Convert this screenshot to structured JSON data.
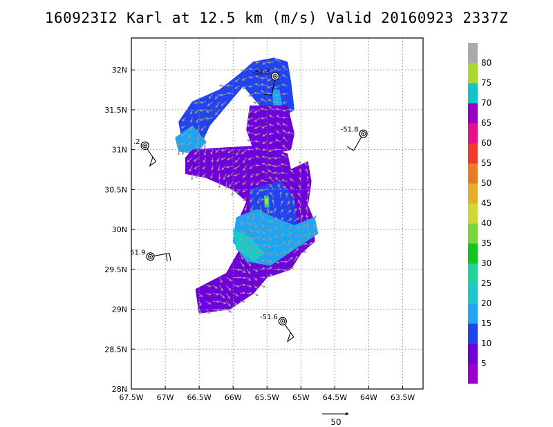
{
  "title": "160923I2 Karl at 12.5 km (m/s) Valid 20160923 2337Z",
  "map": {
    "lon_range": [
      -67.5,
      -63.2
    ],
    "lat_range": [
      28,
      32.4
    ],
    "lon_ticks": [
      {
        "v": -67.5,
        "label": "67.5W"
      },
      {
        "v": -67,
        "label": "67W"
      },
      {
        "v": -66.5,
        "label": "66.5W"
      },
      {
        "v": -66,
        "label": "66W"
      },
      {
        "v": -65.5,
        "label": "65.5W"
      },
      {
        "v": -65,
        "label": "65W"
      },
      {
        "v": -64.5,
        "label": "64.5W"
      },
      {
        "v": -64,
        "label": "64W"
      },
      {
        "v": -63.5,
        "label": "63.5W"
      }
    ],
    "lat_ticks": [
      {
        "v": 28,
        "label": "28N"
      },
      {
        "v": 28.5,
        "label": "28.5N"
      },
      {
        "v": 29,
        "label": "29N"
      },
      {
        "v": 29.5,
        "label": "29.5N"
      },
      {
        "v": 30,
        "label": "30N"
      },
      {
        "v": 30.5,
        "label": "30.5N"
      },
      {
        "v": 31,
        "label": "31N"
      },
      {
        "v": 31.5,
        "label": "31.5N"
      },
      {
        "v": 32,
        "label": "32N"
      }
    ]
  },
  "colorbar": {
    "labels": [
      "5",
      "10",
      "15",
      "20",
      "25",
      "30",
      "35",
      "40",
      "45",
      "50",
      "55",
      "60",
      "65",
      "70",
      "75",
      "80"
    ],
    "colors": [
      "#9a00d0",
      "#7000d8",
      "#2244ee",
      "#1ea6f2",
      "#1cc8c8",
      "#1ed49a",
      "#10c81c",
      "#76d836",
      "#d2d832",
      "#e6ac2a",
      "#ea7a26",
      "#ee3a2c",
      "#e8108a",
      "#9800c8",
      "#12c4c8",
      "#a8da32",
      "#aaaaaa"
    ]
  },
  "dropsondes": [
    {
      "lon": -65.38,
      "lat": 31.92,
      "label": "-52.3",
      "wind_dir": 190,
      "wind_kt": 10
    },
    {
      "lon": -64.08,
      "lat": 31.2,
      "label": "-51.8",
      "wind_dir": 210,
      "wind_kt": 10
    },
    {
      "lon": -67.3,
      "lat": 31.05,
      "label": ".2",
      "wind_dir": 145,
      "wind_kt": 50
    },
    {
      "lon": -67.22,
      "lat": 29.66,
      "label": "51.9",
      "wind_dir": 80,
      "wind_kt": 20
    },
    {
      "lon": -65.27,
      "lat": 28.85,
      "label": "-51.6",
      "wind_dir": 145,
      "wind_kt": 50
    }
  ],
  "vector_scale": {
    "label": "50"
  },
  "wind_field": {
    "region_polygons": [
      {
        "value": 10,
        "points": [
          [
            -66.5,
            31.0
          ],
          [
            -66.75,
            31.1
          ],
          [
            -66.8,
            31.35
          ],
          [
            -66.6,
            31.6
          ],
          [
            -66.2,
            31.75
          ],
          [
            -65.9,
            31.95
          ],
          [
            -65.7,
            32.1
          ],
          [
            -65.4,
            32.15
          ],
          [
            -65.2,
            32.1
          ],
          [
            -65.15,
            31.85
          ],
          [
            -65.1,
            31.5
          ],
          [
            -65.3,
            31.4
          ],
          [
            -65.6,
            31.55
          ],
          [
            -65.85,
            31.8
          ],
          [
            -66.1,
            31.55
          ],
          [
            -66.35,
            31.3
          ],
          [
            -66.45,
            31.1
          ]
        ]
      },
      {
        "value": 15,
        "points": [
          [
            -66.85,
            31.15
          ],
          [
            -66.6,
            31.3
          ],
          [
            -66.4,
            31.1
          ],
          [
            -66.55,
            30.95
          ],
          [
            -66.8,
            30.98
          ]
        ]
      },
      {
        "value": 15,
        "points": [
          [
            -65.42,
            31.75
          ],
          [
            -65.32,
            31.75
          ],
          [
            -65.28,
            31.55
          ],
          [
            -65.4,
            31.55
          ]
        ]
      },
      {
        "value": 5,
        "points": [
          [
            -65.75,
            31.55
          ],
          [
            -65.2,
            31.55
          ],
          [
            -65.1,
            31.2
          ],
          [
            -65.15,
            31.0
          ],
          [
            -65.4,
            30.95
          ],
          [
            -65.7,
            31.0
          ],
          [
            -65.8,
            31.25
          ]
        ]
      },
      {
        "value": 5,
        "points": [
          [
            -66.6,
            31.0
          ],
          [
            -65.6,
            31.05
          ],
          [
            -65.2,
            30.95
          ],
          [
            -65.15,
            30.75
          ],
          [
            -64.9,
            30.85
          ],
          [
            -64.85,
            30.6
          ],
          [
            -64.9,
            30.3
          ],
          [
            -64.8,
            30.1
          ],
          [
            -64.8,
            29.85
          ],
          [
            -65.0,
            29.7
          ],
          [
            -65.15,
            29.5
          ],
          [
            -65.5,
            29.4
          ],
          [
            -65.7,
            29.2
          ],
          [
            -66.05,
            29.0
          ],
          [
            -66.5,
            28.95
          ],
          [
            -66.55,
            29.25
          ],
          [
            -66.1,
            29.45
          ],
          [
            -65.9,
            29.75
          ],
          [
            -65.95,
            30.05
          ],
          [
            -65.8,
            30.35
          ],
          [
            -66.0,
            30.5
          ],
          [
            -66.4,
            30.65
          ],
          [
            -66.7,
            30.7
          ],
          [
            -66.7,
            30.9
          ]
        ]
      },
      {
        "value": 10,
        "points": [
          [
            -65.75,
            30.5
          ],
          [
            -65.3,
            30.6
          ],
          [
            -65.1,
            30.4
          ],
          [
            -65.05,
            30.0
          ],
          [
            -65.3,
            29.8
          ],
          [
            -65.8,
            29.85
          ],
          [
            -65.75,
            30.2
          ]
        ]
      },
      {
        "value": 15,
        "points": [
          [
            -65.95,
            30.15
          ],
          [
            -65.65,
            30.25
          ],
          [
            -65.4,
            30.15
          ],
          [
            -65.1,
            30.05
          ],
          [
            -64.8,
            30.15
          ],
          [
            -64.75,
            29.95
          ],
          [
            -65.1,
            29.75
          ],
          [
            -65.45,
            29.55
          ],
          [
            -65.8,
            29.6
          ],
          [
            -66.0,
            29.85
          ]
        ]
      },
      {
        "value": 20,
        "points": [
          [
            -66.0,
            30.0
          ],
          [
            -65.75,
            29.9
          ],
          [
            -65.55,
            29.7
          ],
          [
            -65.7,
            29.6
          ],
          [
            -65.95,
            29.75
          ]
        ]
      },
      {
        "value": 25,
        "points": [
          [
            -65.54,
            30.42
          ],
          [
            -65.48,
            30.42
          ],
          [
            -65.47,
            30.28
          ],
          [
            -65.53,
            30.28
          ]
        ]
      },
      {
        "value": 40,
        "points": [
          [
            -65.52,
            30.39
          ],
          [
            -65.49,
            30.39
          ],
          [
            -65.49,
            30.32
          ],
          [
            -65.52,
            30.32
          ]
        ]
      }
    ],
    "vector_spacing_deg": 0.1,
    "vector_mean_dir_deg": 120
  }
}
